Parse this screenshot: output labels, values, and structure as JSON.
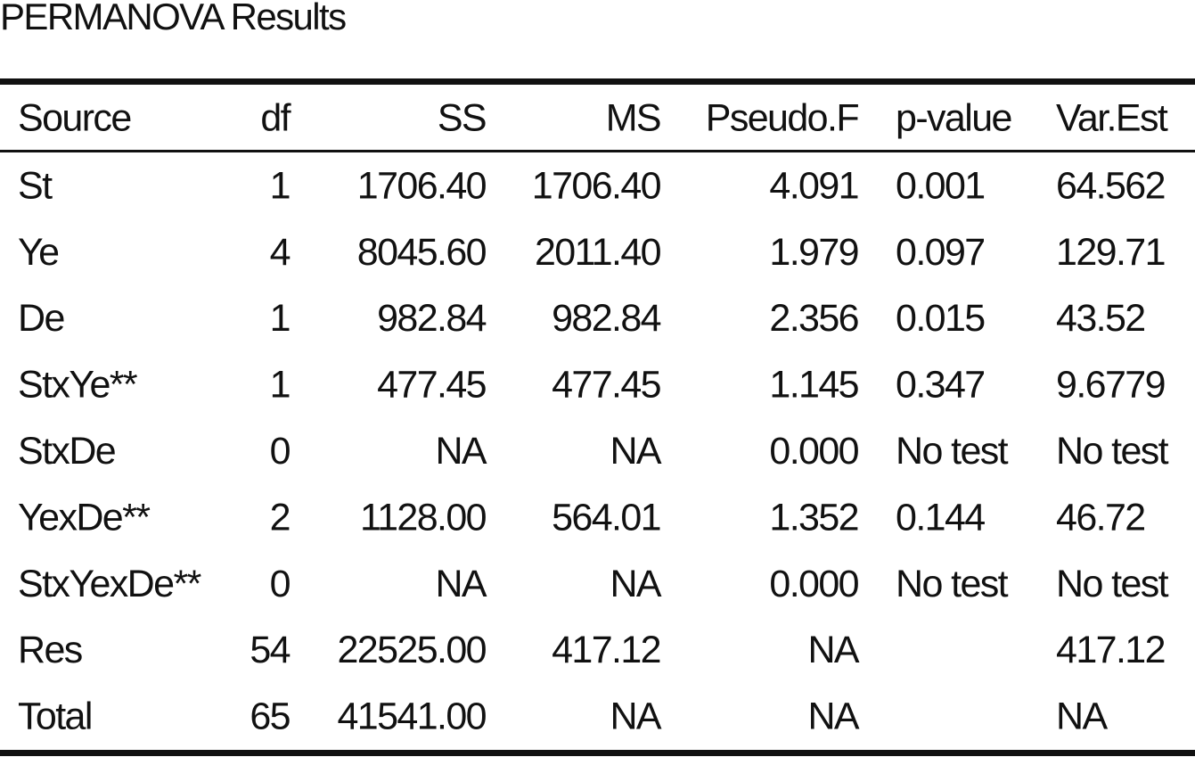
{
  "header": {
    "title": "PERMANOVA Results"
  },
  "table": {
    "columns": [
      "Source",
      "df",
      "SS",
      "MS",
      "Pseudo.F",
      "p-value",
      "Var.Est"
    ],
    "rows": [
      [
        "St",
        "1",
        "1706.40",
        "1706.40",
        "4.091",
        "0.001",
        "64.562"
      ],
      [
        "Ye",
        "4",
        "8045.60",
        "2011.40",
        "1.979",
        "0.097",
        "129.71"
      ],
      [
        "De",
        "1",
        "982.84",
        "982.84",
        "2.356",
        "0.015",
        "43.52"
      ],
      [
        "StxYe**",
        "1",
        "477.45",
        "477.45",
        "1.145",
        "0.347",
        "9.6779"
      ],
      [
        "StxDe",
        "0",
        "NA",
        "NA",
        "0.000",
        "No test",
        "No test"
      ],
      [
        "YexDe**",
        "2",
        "1128.00",
        "564.01",
        "1.352",
        "0.144",
        "46.72"
      ],
      [
        "StxYexDe**",
        "0",
        "NA",
        "NA",
        "0.000",
        "No test",
        "No test"
      ],
      [
        "Res",
        "54",
        "22525.00",
        "417.12",
        "NA",
        null,
        "417.12"
      ],
      [
        "Total",
        "65",
        "41541.00",
        "NA",
        "NA",
        null,
        "NA"
      ]
    ]
  }
}
